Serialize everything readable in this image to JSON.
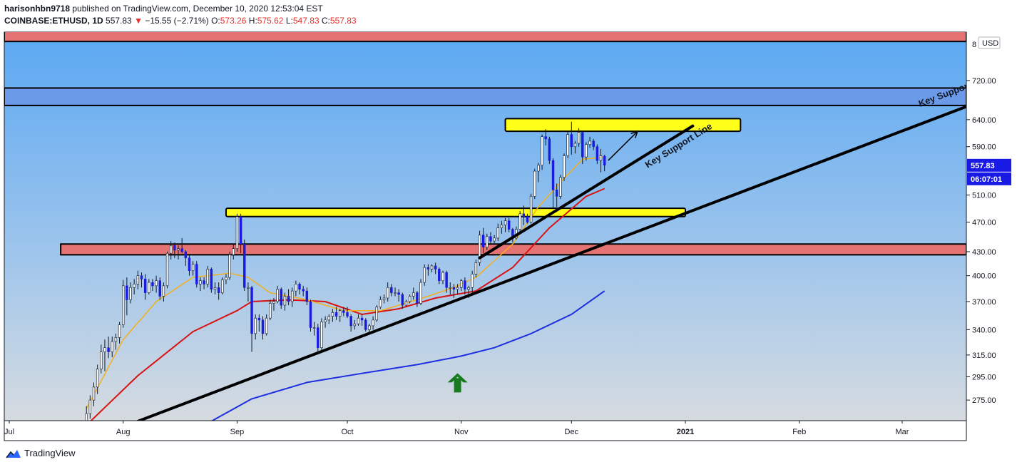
{
  "header": {
    "user": "harisonhbn9718",
    "published_text": "published on TradingView.com, December 10, 2020 12:53:04 EST",
    "symbol": "COINBASE:ETHUSD, 1D",
    "last": "557.83",
    "change": "−15.55 (−2.71%)",
    "open_label": "O:",
    "open": "573.26",
    "high_label": "H:",
    "high": "575.62",
    "low_label": "L:",
    "low": "547.83",
    "close_label": "C:",
    "close": "557.83",
    "down_arrow": "▼"
  },
  "footer": {
    "brand": "TradingView"
  },
  "colors": {
    "up_candle": "#ffffff",
    "down_candle": "#1b1be0",
    "ema_short": "#f2b01e",
    "ema_mid": "#d81313",
    "ema_long": "#1d2fe0",
    "zone_red": "#e57373",
    "zone_blue": "#6a9ae8",
    "zone_yellow": "#ffff1a",
    "price_badge": "#1a1ae6",
    "arrow_green": "#187a1f"
  },
  "chart_data": {
    "type": "candlestick",
    "currency": "USD",
    "y_scale": "log",
    "y_ticks": [
      275,
      295,
      315,
      340,
      370,
      400,
      430,
      470,
      510,
      590,
      640,
      720
    ],
    "y_top_partial_label": "8",
    "x_ticks": [
      {
        "label": "Jul",
        "date": "2020-07-01"
      },
      {
        "label": "Aug",
        "date": "2020-08-01"
      },
      {
        "label": "Sep",
        "date": "2020-09-01"
      },
      {
        "label": "Oct",
        "date": "2020-10-01"
      },
      {
        "label": "Nov",
        "date": "2020-11-01"
      },
      {
        "label": "Dec",
        "date": "2020-12-01"
      },
      {
        "label": "2021",
        "date": "2021-01-01"
      },
      {
        "label": "Feb",
        "date": "2021-02-01"
      },
      {
        "label": "Mar",
        "date": "2021-03-01"
      }
    ],
    "last_price_badge": "557.83",
    "countdown_badge": "06:07:01",
    "ohlc": [
      [
        "2020-07-22",
        258,
        270,
        252,
        264
      ],
      [
        "2020-07-23",
        264,
        279,
        260,
        275
      ],
      [
        "2020-07-24",
        275,
        290,
        270,
        286
      ],
      [
        "2020-07-25",
        286,
        306,
        280,
        302
      ],
      [
        "2020-07-26",
        302,
        325,
        298,
        318
      ],
      [
        "2020-07-27",
        318,
        330,
        300,
        322
      ],
      [
        "2020-07-28",
        322,
        333,
        312,
        318
      ],
      [
        "2020-07-29",
        318,
        333,
        313,
        328
      ],
      [
        "2020-07-30",
        328,
        336,
        320,
        332
      ],
      [
        "2020-07-31",
        332,
        348,
        326,
        345
      ],
      [
        "2020-08-01",
        345,
        395,
        342,
        388
      ],
      [
        "2020-08-02",
        388,
        398,
        355,
        372
      ],
      [
        "2020-08-03",
        372,
        392,
        368,
        386
      ],
      [
        "2020-08-04",
        386,
        396,
        378,
        390
      ],
      [
        "2020-08-05",
        390,
        406,
        384,
        400
      ],
      [
        "2020-08-06",
        400,
        404,
        386,
        396
      ],
      [
        "2020-08-07",
        396,
        402,
        372,
        380
      ],
      [
        "2020-08-08",
        380,
        396,
        378,
        392
      ],
      [
        "2020-08-09",
        392,
        396,
        382,
        388
      ],
      [
        "2020-08-10",
        388,
        400,
        380,
        394
      ],
      [
        "2020-08-11",
        394,
        398,
        372,
        376
      ],
      [
        "2020-08-12",
        376,
        392,
        370,
        388
      ],
      [
        "2020-08-13",
        388,
        430,
        385,
        428
      ],
      [
        "2020-08-14",
        428,
        444,
        420,
        438
      ],
      [
        "2020-08-15",
        438,
        442,
        422,
        432
      ],
      [
        "2020-08-16",
        432,
        438,
        420,
        434
      ],
      [
        "2020-08-17",
        434,
        448,
        428,
        430
      ],
      [
        "2020-08-18",
        430,
        432,
        412,
        422
      ],
      [
        "2020-08-19",
        422,
        426,
        400,
        406
      ],
      [
        "2020-08-20",
        406,
        418,
        400,
        414
      ],
      [
        "2020-08-21",
        414,
        418,
        386,
        390
      ],
      [
        "2020-08-22",
        390,
        398,
        382,
        394
      ],
      [
        "2020-08-23",
        394,
        398,
        384,
        390
      ],
      [
        "2020-08-24",
        390,
        412,
        386,
        408
      ],
      [
        "2020-08-25",
        408,
        410,
        380,
        384
      ],
      [
        "2020-08-26",
        384,
        392,
        378,
        386
      ],
      [
        "2020-08-27",
        386,
        392,
        372,
        380
      ],
      [
        "2020-08-28",
        380,
        398,
        378,
        395
      ],
      [
        "2020-08-29",
        395,
        402,
        390,
        398
      ],
      [
        "2020-08-30",
        398,
        430,
        395,
        426
      ],
      [
        "2020-08-31",
        426,
        440,
        420,
        434
      ],
      [
        "2020-09-01",
        434,
        482,
        430,
        478
      ],
      [
        "2020-09-02",
        478,
        482,
        428,
        440
      ],
      [
        "2020-09-03",
        440,
        446,
        382,
        386
      ],
      [
        "2020-09-04",
        386,
        392,
        370,
        386
      ],
      [
        "2020-09-05",
        386,
        388,
        318,
        336
      ],
      [
        "2020-09-06",
        336,
        356,
        330,
        352
      ],
      [
        "2020-09-07",
        352,
        356,
        338,
        350
      ],
      [
        "2020-09-08",
        350,
        354,
        330,
        336
      ],
      [
        "2020-09-09",
        336,
        356,
        334,
        352
      ],
      [
        "2020-09-10",
        352,
        372,
        350,
        368
      ],
      [
        "2020-09-11",
        368,
        374,
        360,
        370
      ],
      [
        "2020-09-12",
        370,
        388,
        368,
        384
      ],
      [
        "2020-09-13",
        384,
        386,
        362,
        366
      ],
      [
        "2020-09-14",
        366,
        380,
        360,
        376
      ],
      [
        "2020-09-15",
        376,
        384,
        366,
        370
      ],
      [
        "2020-09-16",
        370,
        386,
        364,
        382
      ],
      [
        "2020-09-17",
        382,
        394,
        376,
        390
      ],
      [
        "2020-09-18",
        390,
        392,
        378,
        384
      ],
      [
        "2020-09-19",
        384,
        388,
        376,
        382
      ],
      [
        "2020-09-20",
        382,
        386,
        366,
        370
      ],
      [
        "2020-09-21",
        370,
        372,
        338,
        342
      ],
      [
        "2020-09-22",
        342,
        348,
        334,
        342
      ],
      [
        "2020-09-23",
        342,
        346,
        316,
        322
      ],
      [
        "2020-09-24",
        322,
        352,
        318,
        348
      ],
      [
        "2020-09-25",
        348,
        354,
        342,
        350
      ],
      [
        "2020-09-26",
        350,
        356,
        346,
        354
      ],
      [
        "2020-09-27",
        354,
        362,
        348,
        358
      ],
      [
        "2020-09-28",
        358,
        364,
        350,
        354
      ],
      [
        "2020-09-29",
        354,
        362,
        348,
        360
      ],
      [
        "2020-09-30",
        360,
        364,
        354,
        358
      ],
      [
        "2020-10-01",
        358,
        364,
        352,
        354
      ],
      [
        "2020-10-02",
        354,
        356,
        338,
        344
      ],
      [
        "2020-10-03",
        344,
        350,
        340,
        346
      ],
      [
        "2020-10-04",
        346,
        356,
        344,
        352
      ],
      [
        "2020-10-05",
        352,
        356,
        344,
        350
      ],
      [
        "2020-10-06",
        350,
        352,
        338,
        340
      ],
      [
        "2020-10-07",
        340,
        346,
        336,
        344
      ],
      [
        "2020-10-08",
        344,
        354,
        340,
        350
      ],
      [
        "2020-10-09",
        350,
        366,
        348,
        364
      ],
      [
        "2020-10-10",
        364,
        376,
        362,
        372
      ],
      [
        "2020-10-11",
        372,
        378,
        368,
        374
      ],
      [
        "2020-10-12",
        374,
        392,
        370,
        386
      ],
      [
        "2020-10-13",
        386,
        390,
        376,
        380
      ],
      [
        "2020-10-14",
        380,
        386,
        376,
        380
      ],
      [
        "2020-10-15",
        380,
        384,
        370,
        378
      ],
      [
        "2020-10-16",
        378,
        380,
        362,
        366
      ],
      [
        "2020-10-17",
        366,
        372,
        364,
        370
      ],
      [
        "2020-10-18",
        370,
        378,
        368,
        376
      ],
      [
        "2020-10-19",
        376,
        386,
        372,
        380
      ],
      [
        "2020-10-20",
        380,
        382,
        364,
        368
      ],
      [
        "2020-10-21",
        368,
        396,
        366,
        392
      ],
      [
        "2020-10-22",
        392,
        414,
        388,
        410
      ],
      [
        "2020-10-23",
        410,
        414,
        400,
        408
      ],
      [
        "2020-10-24",
        408,
        414,
        404,
        412
      ],
      [
        "2020-10-25",
        412,
        416,
        402,
        408
      ],
      [
        "2020-10-26",
        408,
        410,
        390,
        394
      ],
      [
        "2020-10-27",
        394,
        406,
        390,
        404
      ],
      [
        "2020-10-28",
        404,
        406,
        380,
        386
      ],
      [
        "2020-10-29",
        386,
        392,
        378,
        386
      ],
      [
        "2020-10-30",
        386,
        390,
        374,
        384
      ],
      [
        "2020-10-31",
        384,
        390,
        378,
        386
      ],
      [
        "2020-11-01",
        386,
        396,
        382,
        394
      ],
      [
        "2020-11-02",
        394,
        398,
        378,
        384
      ],
      [
        "2020-11-03",
        384,
        388,
        374,
        386
      ],
      [
        "2020-11-04",
        386,
        406,
        380,
        402
      ],
      [
        "2020-11-05",
        402,
        420,
        398,
        416
      ],
      [
        "2020-11-06",
        416,
        458,
        412,
        452
      ],
      [
        "2020-11-07",
        452,
        462,
        428,
        436
      ],
      [
        "2020-11-08",
        436,
        454,
        432,
        450
      ],
      [
        "2020-11-09",
        450,
        456,
        440,
        444
      ],
      [
        "2020-11-10",
        444,
        452,
        440,
        448
      ],
      [
        "2020-11-11",
        448,
        468,
        444,
        462
      ],
      [
        "2020-11-12",
        462,
        472,
        454,
        466
      ],
      [
        "2020-11-13",
        466,
        476,
        456,
        472
      ],
      [
        "2020-11-14",
        472,
        476,
        456,
        460
      ],
      [
        "2020-11-15",
        460,
        462,
        442,
        448
      ],
      [
        "2020-11-16",
        448,
        464,
        446,
        460
      ],
      [
        "2020-11-17",
        460,
        486,
        456,
        482
      ],
      [
        "2020-11-18",
        482,
        494,
        466,
        478
      ],
      [
        "2020-11-19",
        478,
        482,
        468,
        470
      ],
      [
        "2020-11-20",
        470,
        512,
        468,
        508
      ],
      [
        "2020-11-21",
        508,
        552,
        504,
        548
      ],
      [
        "2020-11-22",
        548,
        562,
        530,
        558
      ],
      [
        "2020-11-23",
        558,
        612,
        550,
        608
      ],
      [
        "2020-11-24",
        608,
        622,
        592,
        604
      ],
      [
        "2020-11-25",
        604,
        608,
        560,
        566
      ],
      [
        "2020-11-26",
        566,
        570,
        490,
        518
      ],
      [
        "2020-11-27",
        518,
        528,
        492,
        508
      ],
      [
        "2020-11-28",
        508,
        542,
        504,
        538
      ],
      [
        "2020-11-29",
        538,
        578,
        532,
        574
      ],
      [
        "2020-11-30",
        574,
        618,
        570,
        612
      ],
      [
        "2020-12-01",
        612,
        636,
        576,
        590
      ],
      [
        "2020-12-02",
        590,
        600,
        578,
        596
      ],
      [
        "2020-12-03",
        596,
        624,
        590,
        616
      ],
      [
        "2020-12-04",
        616,
        618,
        560,
        572
      ],
      [
        "2020-12-05",
        572,
        598,
        566,
        594
      ],
      [
        "2020-12-06",
        594,
        608,
        588,
        600
      ],
      [
        "2020-12-07",
        600,
        604,
        584,
        590
      ],
      [
        "2020-12-08",
        590,
        594,
        560,
        566
      ],
      [
        "2020-12-09",
        566,
        586,
        546,
        574
      ],
      [
        "2020-12-10",
        573.26,
        575.62,
        547.83,
        557.83
      ]
    ],
    "ema_short": [
      [
        "2020-07-22",
        268
      ],
      [
        "2020-08-01",
        330
      ],
      [
        "2020-08-10",
        370
      ],
      [
        "2020-08-20",
        398
      ],
      [
        "2020-08-30",
        403
      ],
      [
        "2020-09-04",
        398
      ],
      [
        "2020-09-10",
        380
      ],
      [
        "2020-09-20",
        372
      ],
      [
        "2020-09-30",
        360
      ],
      [
        "2020-10-10",
        360
      ],
      [
        "2020-10-20",
        372
      ],
      [
        "2020-10-30",
        386
      ],
      [
        "2020-11-05",
        398
      ],
      [
        "2020-11-15",
        440
      ],
      [
        "2020-11-22",
        492
      ],
      [
        "2020-11-28",
        530
      ],
      [
        "2020-12-04",
        568
      ],
      [
        "2020-12-10",
        572
      ]
    ],
    "ema_mid": [
      [
        "2020-07-22",
        255
      ],
      [
        "2020-08-05",
        296
      ],
      [
        "2020-08-20",
        338
      ],
      [
        "2020-09-01",
        360
      ],
      [
        "2020-09-05",
        370
      ],
      [
        "2020-09-15",
        372
      ],
      [
        "2020-09-25",
        370
      ],
      [
        "2020-10-05",
        356
      ],
      [
        "2020-10-15",
        362
      ],
      [
        "2020-10-25",
        374
      ],
      [
        "2020-11-05",
        382
      ],
      [
        "2020-11-15",
        410
      ],
      [
        "2020-11-25",
        462
      ],
      [
        "2020-12-05",
        508
      ],
      [
        "2020-12-10",
        520
      ]
    ],
    "ema_long": [
      [
        "2020-08-25",
        258
      ],
      [
        "2020-09-05",
        276
      ],
      [
        "2020-09-20",
        290
      ],
      [
        "2020-10-05",
        298
      ],
      [
        "2020-10-20",
        306
      ],
      [
        "2020-11-01",
        314
      ],
      [
        "2020-11-10",
        322
      ],
      [
        "2020-11-20",
        336
      ],
      [
        "2020-12-01",
        356
      ],
      [
        "2020-12-10",
        382
      ]
    ],
    "zones": [
      {
        "color": "red",
        "from": "chart-start",
        "to": "chart-end",
        "low": 810,
        "high": 860
      },
      {
        "color": "blue",
        "from": "chart-start",
        "to": "chart-end",
        "low": 668,
        "high": 704
      },
      {
        "color": "yellow",
        "from": "2020-11-13",
        "to": "2021-01-16",
        "low": 618,
        "high": 642
      },
      {
        "color": "yellow",
        "from": "2020-08-29",
        "to": "2021-01-01",
        "low": 478,
        "high": 490
      },
      {
        "color": "red",
        "from": "2020-07-15",
        "to": "chart-end",
        "low": 426,
        "high": 440
      }
    ],
    "trendlines": [
      {
        "label": "Key Support",
        "from": [
          "2020-08-05",
          258
        ],
        "to": [
          "2021-03-20",
          670
        ]
      },
      {
        "label": "Key Support Line",
        "from": [
          "2020-11-06",
          422
        ],
        "to": [
          "2021-01-03",
          628
        ]
      }
    ],
    "annotations": [
      {
        "type": "arrow",
        "from": [
          "2020-12-11",
          566
        ],
        "to": [
          "2020-12-19",
          618
        ]
      },
      {
        "type": "up-arrow",
        "color": "green",
        "date": "2020-10-31",
        "price": 290
      }
    ],
    "trendline_labels": [
      "Key Support",
      "Key Support Line"
    ]
  }
}
